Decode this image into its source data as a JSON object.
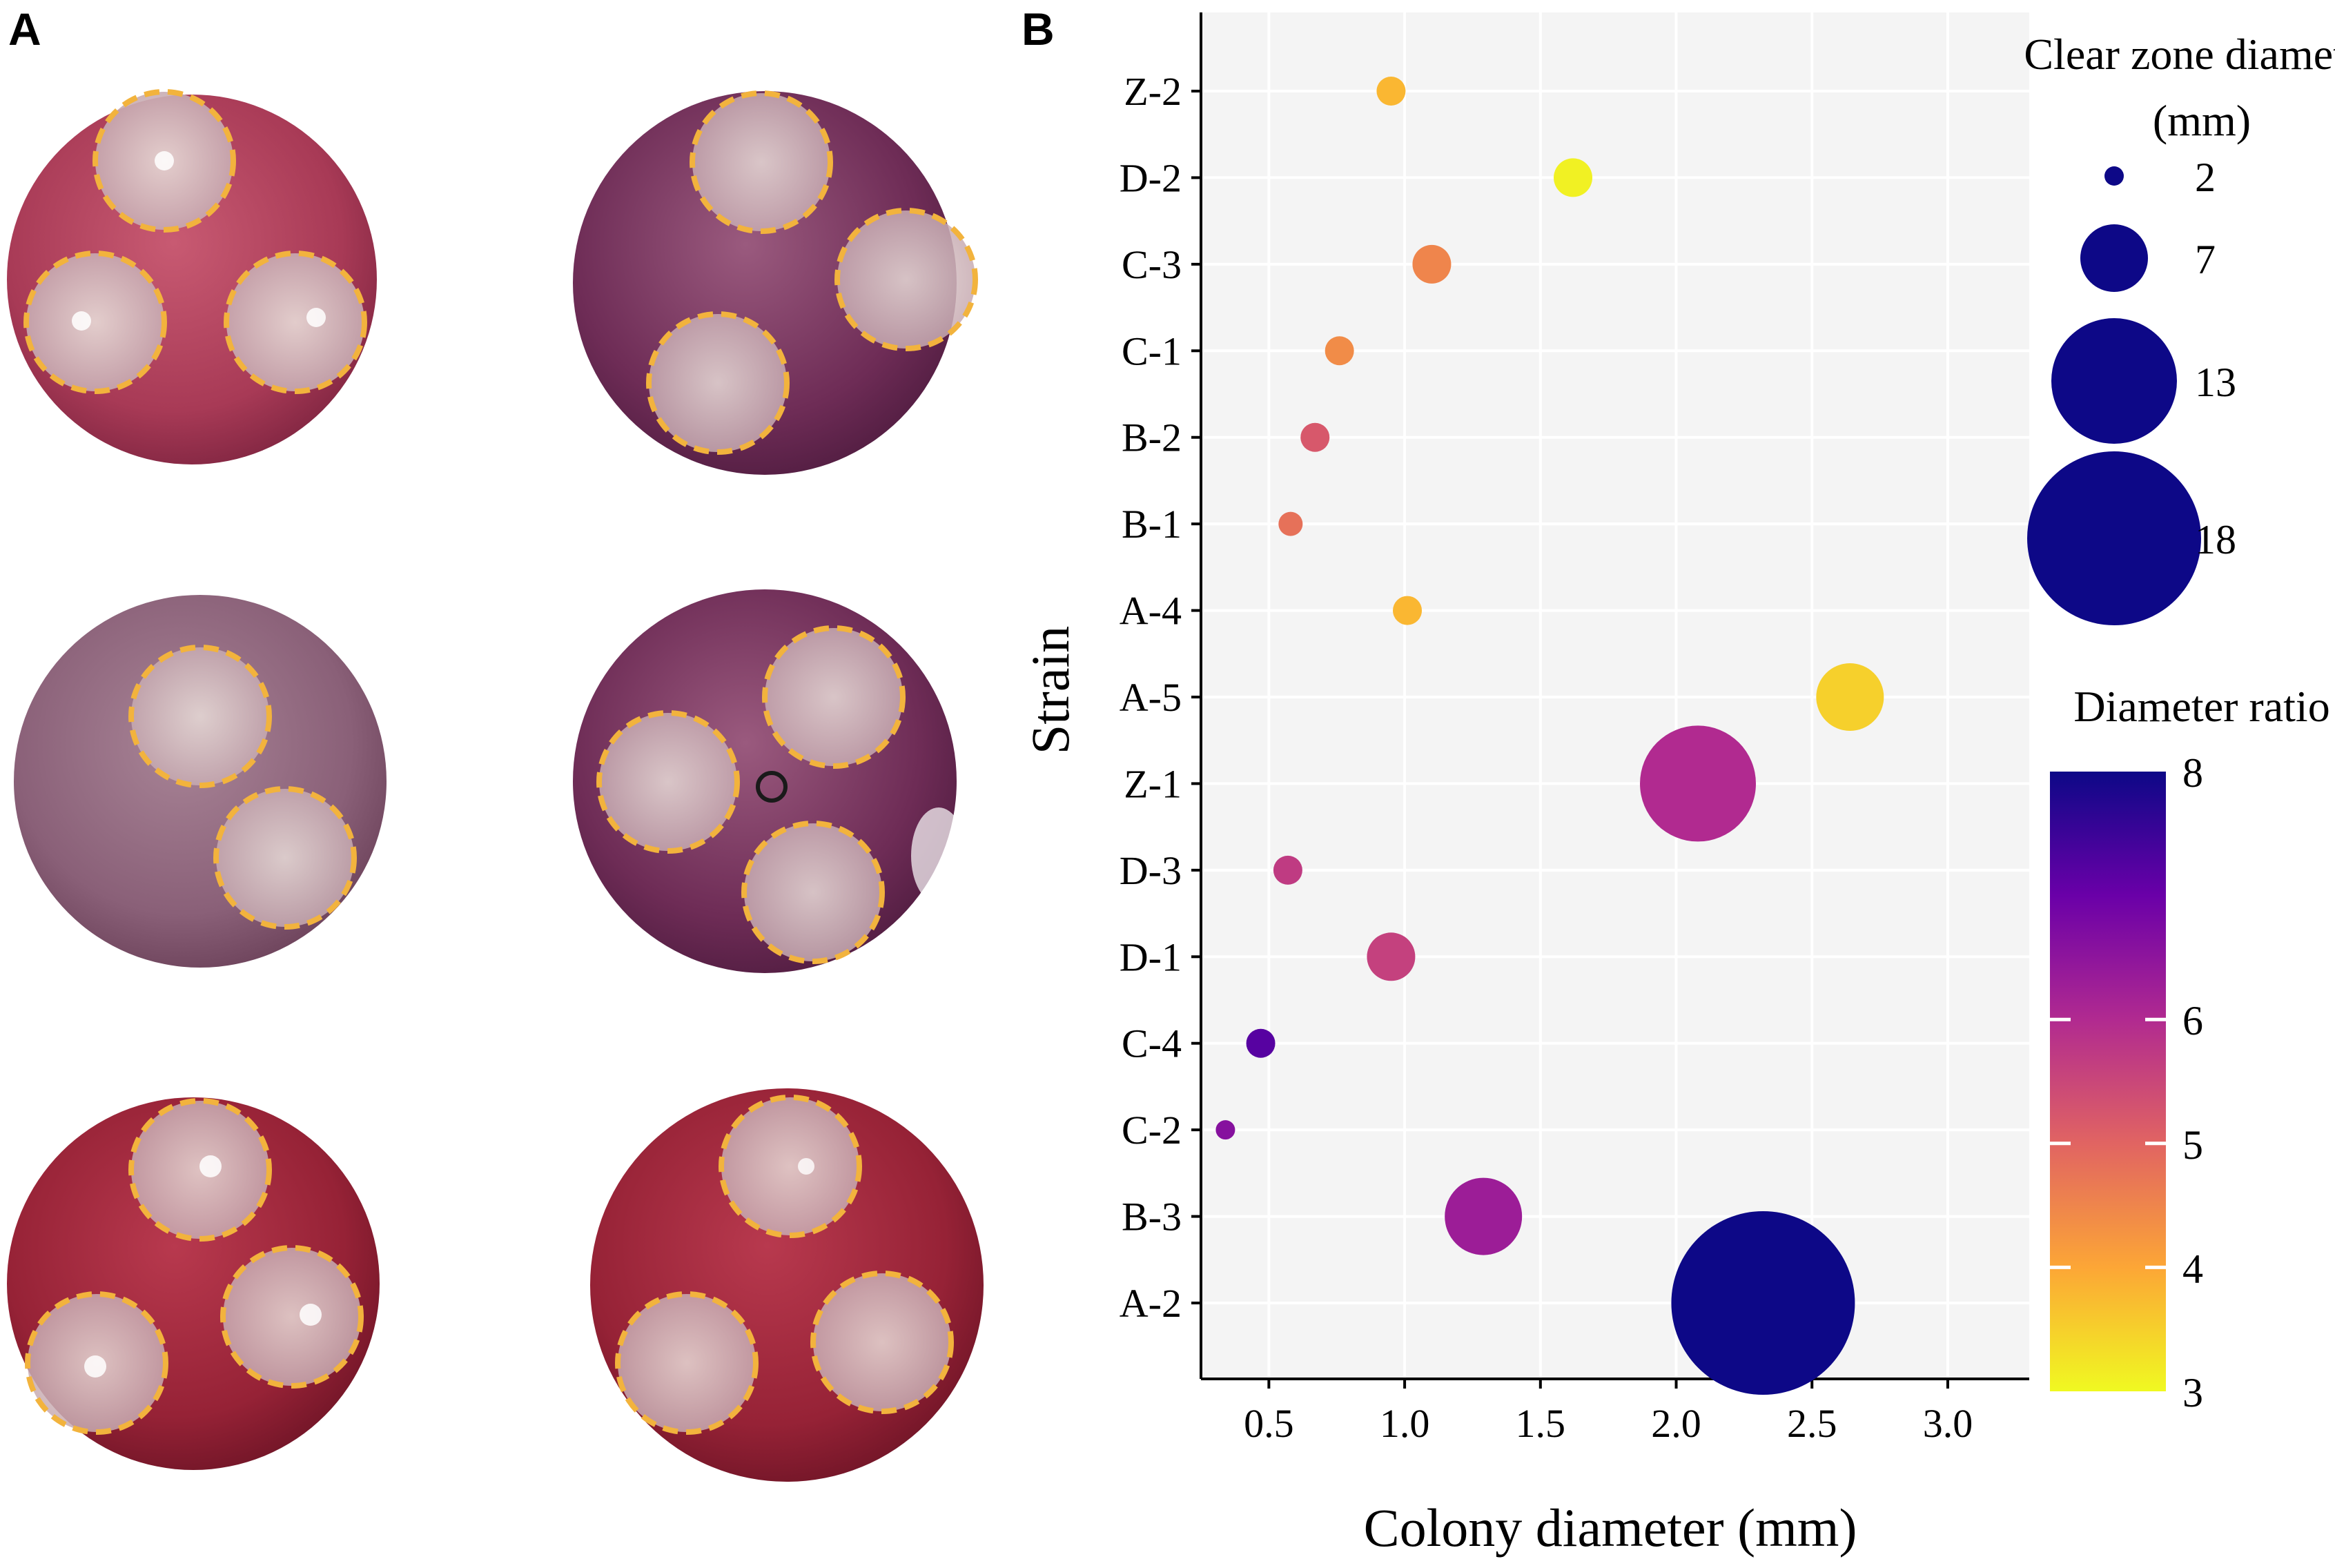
{
  "panels": {
    "a_label": "A",
    "b_label": "B"
  },
  "plates": [
    {
      "zones": 3,
      "tone": "pink"
    },
    {
      "zones": 3,
      "tone": "purple"
    },
    {
      "zones": 2,
      "tone": "mauve"
    },
    {
      "zones": 3,
      "tone": "purple"
    },
    {
      "zones": 3,
      "tone": "red"
    },
    {
      "zones": 3,
      "tone": "red"
    }
  ],
  "colors": {
    "zone_outline": "#f2b33d",
    "plot_background": "#f4f4f4",
    "gridline": "#ffffff",
    "ratio_scale": [
      "#f0f921",
      "#fca636",
      "#e16462",
      "#b12a90",
      "#6a00a8",
      "#0d0887"
    ]
  },
  "chart_data": {
    "type": "scatter",
    "xlabel": "Colony diameter (mm)",
    "ylabel": "Strain",
    "xlim": [
      0.25,
      3.3
    ],
    "xticks": [
      "0.5",
      "1.0",
      "1.5",
      "2.0",
      "2.5",
      "3.0"
    ],
    "categories": [
      "A-2",
      "B-3",
      "C-2",
      "C-4",
      "D-1",
      "D-3",
      "Z-1",
      "A-5",
      "A-4",
      "B-1",
      "B-2",
      "C-1",
      "C-3",
      "D-2",
      "Z-2"
    ],
    "points": [
      {
        "strain": "A-2",
        "colony_diameter": 2.32,
        "clear_zone_diameter": 19,
        "diameter_ratio": 8.1
      },
      {
        "strain": "B-3",
        "colony_diameter": 1.29,
        "clear_zone_diameter": 8,
        "diameter_ratio": 6.3
      },
      {
        "strain": "C-2",
        "colony_diameter": 0.34,
        "clear_zone_diameter": 2,
        "diameter_ratio": 6.6
      },
      {
        "strain": "C-4",
        "colony_diameter": 0.47,
        "clear_zone_diameter": 3,
        "diameter_ratio": 7.2
      },
      {
        "strain": "D-1",
        "colony_diameter": 0.95,
        "clear_zone_diameter": 5,
        "diameter_ratio": 5.6
      },
      {
        "strain": "D-3",
        "colony_diameter": 0.57,
        "clear_zone_diameter": 3,
        "diameter_ratio": 5.7
      },
      {
        "strain": "Z-1",
        "colony_diameter": 2.08,
        "clear_zone_diameter": 12,
        "diameter_ratio": 6.0
      },
      {
        "strain": "A-5",
        "colony_diameter": 2.64,
        "clear_zone_diameter": 7,
        "diameter_ratio": 3.5
      },
      {
        "strain": "A-4",
        "colony_diameter": 1.01,
        "clear_zone_diameter": 3,
        "diameter_ratio": 3.8
      },
      {
        "strain": "B-1",
        "colony_diameter": 0.58,
        "clear_zone_diameter": 2.5,
        "diameter_ratio": 4.8
      },
      {
        "strain": "B-2",
        "colony_diameter": 0.67,
        "clear_zone_diameter": 3,
        "diameter_ratio": 5.2
      },
      {
        "strain": "C-1",
        "colony_diameter": 0.76,
        "clear_zone_diameter": 3,
        "diameter_ratio": 4.4
      },
      {
        "strain": "C-3",
        "colony_diameter": 1.1,
        "clear_zone_diameter": 4,
        "diameter_ratio": 4.5
      },
      {
        "strain": "D-2",
        "colony_diameter": 1.62,
        "clear_zone_diameter": 4,
        "diameter_ratio": 3.1
      },
      {
        "strain": "Z-2",
        "colony_diameter": 0.95,
        "clear_zone_diameter": 3,
        "diameter_ratio": 3.8
      }
    ],
    "size_legend": {
      "title_line1": "Clear zone diameter",
      "title_line2": "(mm)",
      "entries": [
        {
          "label": "2",
          "value": 2
        },
        {
          "label": "7",
          "value": 7
        },
        {
          "label": "13",
          "value": 13
        },
        {
          "label": "18",
          "value": 18
        }
      ]
    },
    "color_legend": {
      "title": "Diameter ratio",
      "min": 3,
      "max": 8,
      "ticks": [
        "3",
        "4",
        "5",
        "6",
        "8"
      ],
      "tick_values": [
        3,
        4,
        5,
        6,
        8
      ]
    }
  }
}
